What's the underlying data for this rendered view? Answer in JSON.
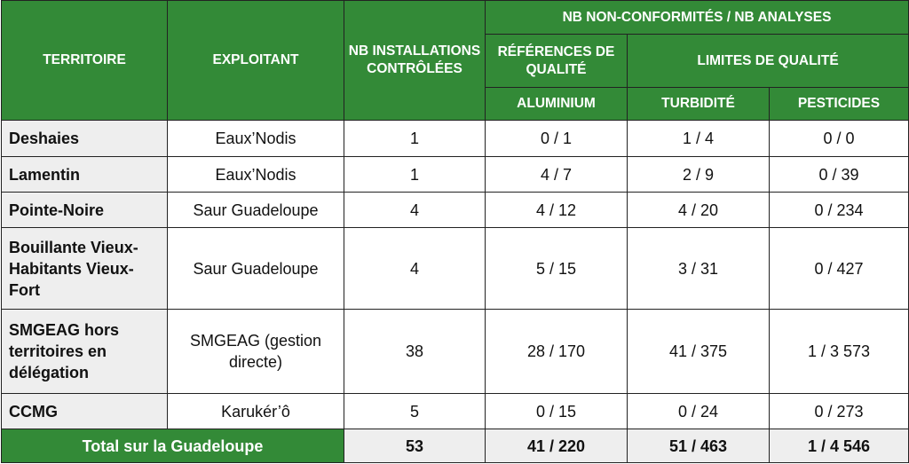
{
  "header": {
    "territoire": "TERRITOIRE",
    "exploitant": "EXPLOITANT",
    "installations": "NB INSTALLATIONS CONTRÔLÉES",
    "group": "NB NON-CONFORMITÉS / NB ANALYSES",
    "references": "RÉFÉRENCES DE QUALITÉ",
    "limites": "LIMITES DE QUALITÉ",
    "aluminium": "ALUMINIUM",
    "turbidite": "TURBIDITÉ",
    "pesticides": "PESTICIDES"
  },
  "rows": [
    {
      "territoire": "Deshaies",
      "exploitant": "Eaux’Nodis",
      "installations": "1",
      "aluminium": "0 / 1",
      "turbidite": "1 / 4",
      "pesticides": "0 / 0"
    },
    {
      "territoire": "Lamentin",
      "exploitant": "Eaux’Nodis",
      "installations": "1",
      "aluminium": "4 / 7",
      "turbidite": "2 / 9",
      "pesticides": "0 / 39"
    },
    {
      "territoire": "Pointe-Noire",
      "exploitant": "Saur Guadeloupe",
      "installations": "4",
      "aluminium": "4 / 12",
      "turbidite": "4 / 20",
      "pesticides": "0 / 234"
    },
    {
      "territoire": "Bouillante Vieux-Habitants Vieux-Fort",
      "exploitant": "Saur Guadeloupe",
      "installations": "4",
      "aluminium": "5 / 15",
      "turbidite": "3 / 31",
      "pesticides": "0 / 427"
    },
    {
      "territoire": "SMGEAG hors territoires en délégation",
      "exploitant": "SMGEAG (gestion directe)",
      "installations": "38",
      "aluminium": "28 / 170",
      "turbidite": "41 / 375",
      "pesticides": "1 / 3 573"
    },
    {
      "territoire": "CCMG",
      "exploitant": "Karukér’ô",
      "installations": "5",
      "aluminium": "0 / 15",
      "turbidite": "0 / 24",
      "pesticides": "0 / 273"
    }
  ],
  "total": {
    "label": "Total sur la Guadeloupe",
    "installations": "53",
    "aluminium": "41 / 220",
    "turbidite": "51 / 463",
    "pesticides": "1 / 4 546"
  },
  "colors": {
    "header_green": "#338a37",
    "label_gray": "#eeeeee"
  }
}
